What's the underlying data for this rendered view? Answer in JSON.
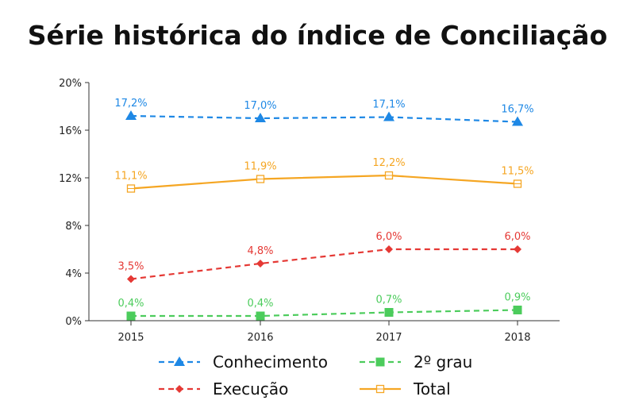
{
  "chart_data": {
    "type": "line",
    "title": "Série histórica do índice de Conciliação",
    "xlabel": "",
    "ylabel": "",
    "categories": [
      "2015",
      "2016",
      "2017",
      "2018"
    ],
    "ylim": [
      0,
      20
    ],
    "yticks": [
      "0%",
      "4%",
      "8%",
      "12%",
      "16%",
      "20%"
    ],
    "ytick_values": [
      0,
      4,
      8,
      12,
      16,
      20
    ],
    "grid": false,
    "legend_position": "bottom",
    "series": [
      {
        "name": "Conhecimento",
        "values": [
          17.2,
          17.0,
          17.1,
          16.7
        ],
        "labels": [
          "17,2%",
          "17,0%",
          "17,1%",
          "16,7%"
        ],
        "color": "#1e88e5",
        "dash": "dashed",
        "marker": "triangle"
      },
      {
        "name": "Execução",
        "values": [
          3.5,
          4.8,
          6.0,
          6.0
        ],
        "labels": [
          "3,5%",
          "4,8%",
          "6,0%",
          "6,0%"
        ],
        "color": "#e53935",
        "dash": "dashed",
        "marker": "diamond"
      },
      {
        "name": "2º grau",
        "values": [
          0.4,
          0.4,
          0.7,
          0.9
        ],
        "labels": [
          "0,4%",
          "0,4%",
          "0,7%",
          "0,9%"
        ],
        "color": "#4ccc5c",
        "dash": "dashed",
        "marker": "square"
      },
      {
        "name": "Total",
        "values": [
          11.1,
          11.9,
          12.2,
          11.5
        ],
        "labels": [
          "11,1%",
          "11,9%",
          "12,2%",
          "11,5%"
        ],
        "color": "#f5a623",
        "dash": "solid",
        "marker": "square-open"
      }
    ]
  }
}
